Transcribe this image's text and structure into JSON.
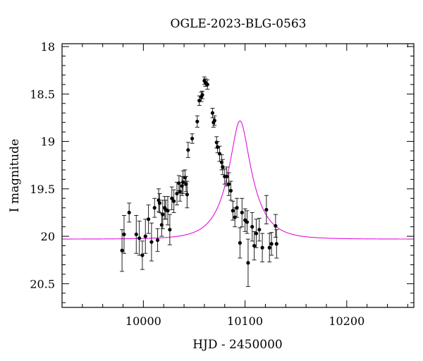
{
  "chart_data": {
    "type": "scatter",
    "title": "OGLE-2023-BLG-0563",
    "xlabel": "HJD - 2450000",
    "ylabel": "I magnitude",
    "xlim": [
      9920,
      10266
    ],
    "ylim": [
      20.75,
      17.97
    ],
    "y_inverted": true,
    "grid": false,
    "legend": "none",
    "x_ticks": [
      {
        "value": 10000,
        "label": "10000"
      },
      {
        "value": 10100,
        "label": "10100"
      },
      {
        "value": 10200,
        "label": "10200"
      }
    ],
    "y_ticks": [
      {
        "value": 18,
        "label": "18"
      },
      {
        "value": 18.5,
        "label": "18.5"
      },
      {
        "value": 19,
        "label": "19"
      },
      {
        "value": 19.5,
        "label": "19.5"
      },
      {
        "value": 20,
        "label": "20"
      },
      {
        "value": 20.5,
        "label": "20.5"
      }
    ],
    "x_minor_step": 20,
    "y_minor_step": 0.1,
    "model": {
      "color": "#e010e0",
      "t0": 10095,
      "tE": 24,
      "u0": 0.33,
      "baseline": 20.03
    },
    "series": [
      {
        "color": "#000000",
        "points": [
          [
            9979,
            20.15,
            0.22
          ],
          [
            9981,
            19.98,
            0.2
          ],
          [
            9986,
            19.75,
            0.1
          ],
          [
            9993,
            19.98,
            0.2
          ],
          [
            9996,
            20.02,
            0.18
          ],
          [
            9999,
            20.2,
            0.15
          ],
          [
            10002,
            20.0,
            0.18
          ],
          [
            10005,
            19.82,
            0.15
          ],
          [
            10008,
            20.06,
            0.2
          ],
          [
            10011,
            19.7,
            0.1
          ],
          [
            10014,
            20.04,
            0.12
          ],
          [
            10015,
            19.62,
            0.12
          ],
          [
            10016,
            19.65,
            0.1
          ],
          [
            10018,
            19.88,
            0.12
          ],
          [
            10019,
            19.77,
            0.15
          ],
          [
            10021,
            19.7,
            0.12
          ],
          [
            10022,
            19.72,
            0.1
          ],
          [
            10024,
            19.73,
            0.15
          ],
          [
            10026,
            19.93,
            0.16
          ],
          [
            10028,
            19.6,
            0.12
          ],
          [
            10030,
            19.63,
            0.12
          ],
          [
            10033,
            19.55,
            0.12
          ],
          [
            10035,
            19.44,
            0.08
          ],
          [
            10036,
            19.53,
            0.1
          ],
          [
            10038,
            19.47,
            0.1
          ],
          [
            10039,
            19.43,
            0.12
          ],
          [
            10041,
            19.38,
            0.08
          ],
          [
            10042,
            19.45,
            0.08
          ],
          [
            10043,
            19.56,
            0.14
          ],
          [
            10044,
            19.09,
            0.08
          ],
          [
            10048,
            18.97,
            0.05
          ],
          [
            10053,
            18.79,
            0.06
          ],
          [
            10055,
            18.57,
            0.05
          ],
          [
            10057,
            18.53,
            0.05
          ],
          [
            10058,
            18.51,
            0.04
          ],
          [
            10060,
            18.36,
            0.04
          ],
          [
            10061,
            18.38,
            0.04
          ],
          [
            10063,
            18.4,
            0.05
          ],
          [
            10068,
            18.7,
            0.05
          ],
          [
            10069,
            18.8,
            0.05
          ],
          [
            10070,
            18.78,
            0.05
          ],
          [
            10072,
            19.01,
            0.06
          ],
          [
            10073,
            19.06,
            0.06
          ],
          [
            10075,
            19.13,
            0.08
          ],
          [
            10077,
            19.22,
            0.08
          ],
          [
            10078,
            19.27,
            0.08
          ],
          [
            10080,
            19.37,
            0.08
          ],
          [
            10082,
            19.37,
            0.1
          ],
          [
            10084,
            19.45,
            0.12
          ],
          [
            10086,
            19.52,
            0.1
          ],
          [
            10088,
            19.73,
            0.1
          ],
          [
            10090,
            19.8,
            0.1
          ],
          [
            10092,
            19.7,
            0.1
          ],
          [
            10095,
            20.07,
            0.16
          ],
          [
            10097,
            19.75,
            0.15
          ],
          [
            10100,
            19.83,
            0.12
          ],
          [
            10102,
            19.85,
            0.12
          ],
          [
            10103,
            20.28,
            0.25
          ],
          [
            10107,
            19.9,
            0.15
          ],
          [
            10109,
            20.1,
            0.15
          ],
          [
            10111,
            19.97,
            0.15
          ],
          [
            10114,
            19.93,
            0.12
          ],
          [
            10117,
            20.12,
            0.15
          ],
          [
            10121,
            19.72,
            0.15
          ],
          [
            10124,
            20.12,
            0.15
          ],
          [
            10126,
            20.08,
            0.12
          ],
          [
            10130,
            19.89,
            0.12
          ],
          [
            10131,
            20.08,
            0.15
          ]
        ]
      }
    ]
  }
}
